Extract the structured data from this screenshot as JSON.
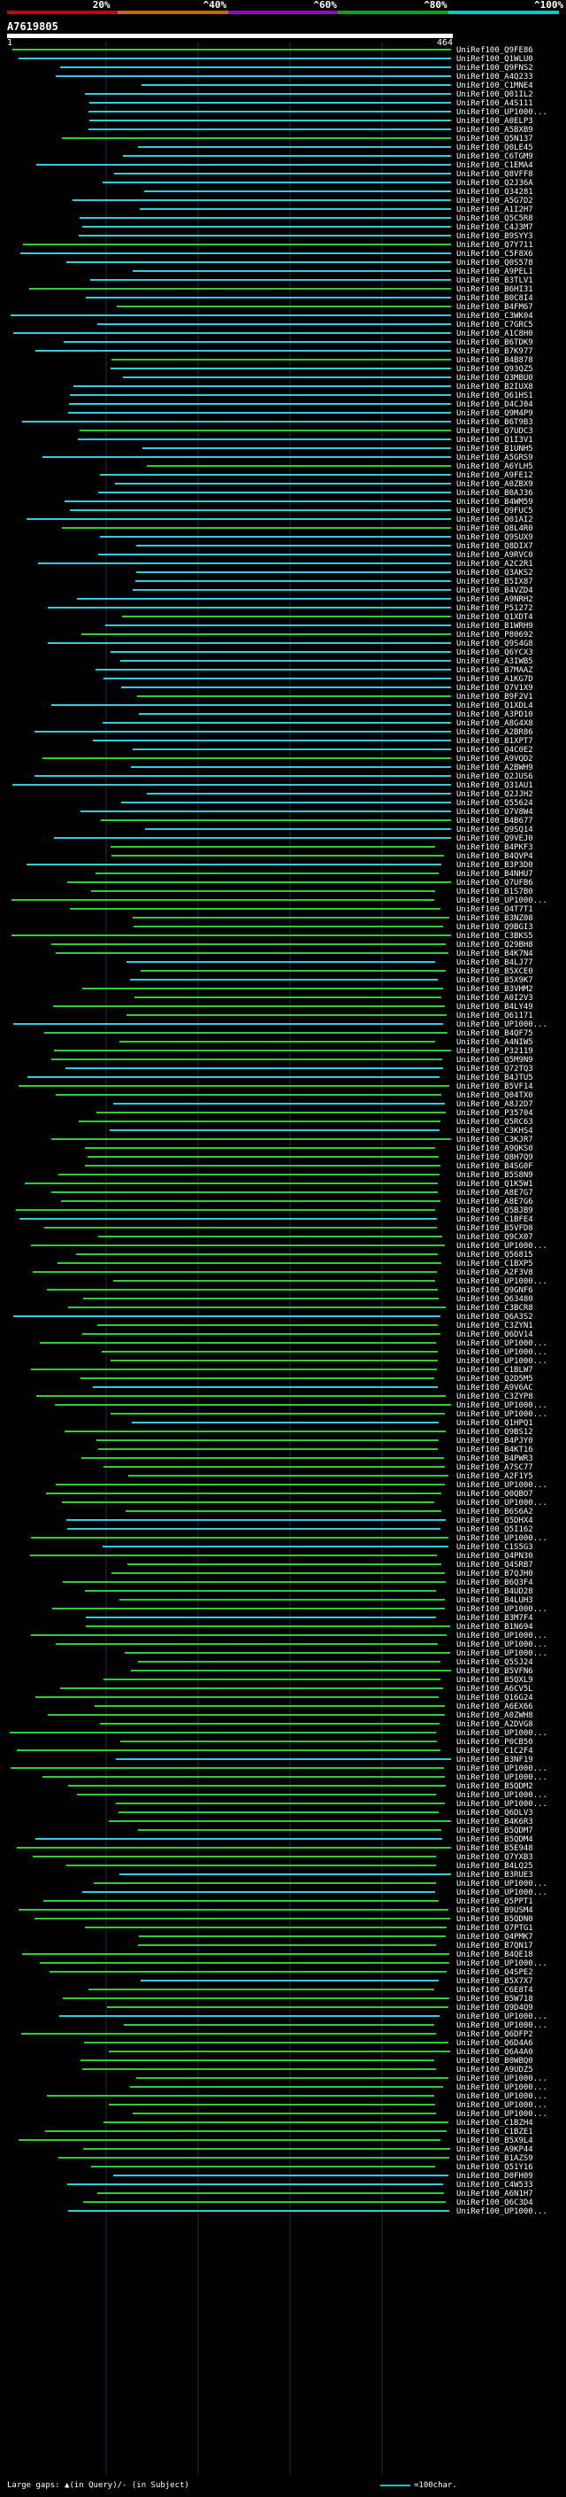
{
  "scale_labels": [
    "20%",
    "^40%",
    "^60%",
    "^80%",
    "^100%"
  ],
  "scale_colors": [
    "#cc0000",
    "#cc6600",
    "#9900cc",
    "#00aa00",
    "#00cccc"
  ],
  "query": {
    "id": "A7619805",
    "start": "1",
    "end": "464"
  },
  "hit_colors": {
    "high": "#33ccdd",
    "mid": "#33cc33"
  },
  "hits": [
    "UniRef100_Q9FE86",
    "UniRef100_Q1WLU0",
    "UniRef100_Q9FNS2",
    "UniRef100_A4Q233",
    "UniRef100_C1MNE4",
    "UniRef100_Q01IL2",
    "UniRef100_A4S111",
    "UniRef100_UP1000...",
    "UniRef100_A0ELP3",
    "UniRef100_A5BXB9",
    "UniRef100_Q5N137",
    "UniRef100_Q0LE45",
    "UniRef100_C6TGM9",
    "UniRef100_C1EMA4",
    "UniRef100_Q8VFF8",
    "UniRef100_Q2J36A",
    "UniRef100_Q34281",
    "UniRef100_A5G7D2",
    "UniRef100_A1I2H7",
    "UniRef100_Q5C5R8",
    "UniRef100_C4J3M7",
    "UniRef100_B9SYY3",
    "UniRef100_Q7Y711",
    "UniRef100_C5F8X6",
    "UniRef100_Q0S578",
    "UniRef100_A9PEL1",
    "UniRef100_B3TLV1",
    "UniRef100_B6HI31",
    "UniRef100_B0C8I4",
    "UniRef100_B4FM67",
    "UniRef100_C3WK04",
    "UniRef100_C7GRC5",
    "UniRef100_A1C8H0",
    "UniRef100_B6TDK9",
    "UniRef100_B7K977",
    "UniRef100_B4B878",
    "UniRef100_Q93QZ5",
    "UniRef100_Q3MBU0",
    "UniRef100_B2IUX8",
    "UniRef100_Q61HS1",
    "UniRef100_D4CJ04",
    "UniRef100_Q9M4P9",
    "UniRef100_B6T9B3",
    "UniRef100_Q7UDC3",
    "UniRef100_Q1I3V1",
    "UniRef100_B1UNH5",
    "UniRef100_A5GRS9",
    "UniRef100_A6YLH5",
    "UniRef100_A9FE12",
    "UniRef100_A0ZBX9",
    "UniRef100_B0AJ36",
    "UniRef100_B4WM59",
    "UniRef100_Q9FUC5",
    "UniRef100_Q01AI2",
    "UniRef100_Q8L4R0",
    "UniRef100_Q9SUX9",
    "UniRef100_Q8DIX7",
    "UniRef100_A9RVC0",
    "UniRef100_A2C2R1",
    "UniRef100_Q3AKS2",
    "UniRef100_B5IX87",
    "UniRef100_B4VZD4",
    "UniRef100_A9NRH2",
    "UniRef100_P51272",
    "UniRef100_Q1XDT4",
    "UniRef100_B1WRH9",
    "UniRef100_P80692",
    "UniRef100_Q9S4G8",
    "UniRef100_Q6YCX3",
    "UniRef100_A3IWB5",
    "UniRef100_B7MAAZ",
    "UniRef100_A1KG7D",
    "UniRef100_Q7V1X9",
    "UniRef100_B9F2V1",
    "UniRef100_Q1XDL4",
    "UniRef100_A3PD10",
    "UniRef100_A8G4X8",
    "UniRef100_A2BR86",
    "UniRef100_B1XPT7",
    "UniRef100_Q4C0E2",
    "UniRef100_A9VQD2",
    "UniRef100_A2BWH9",
    "UniRef100_Q2JUS6",
    "UniRef100_Q31AU1",
    "UniRef100_Q2JJH2",
    "UniRef100_Q55624",
    "UniRef100_Q7V8W4",
    "UniRef100_B4B677",
    "UniRef100_Q9SQ14",
    "UniRef100_Q9VEJ0",
    "UniRef100_B4PKF3",
    "UniRef100_B4QVP4",
    "UniRef100_B3P3D0",
    "UniRef100_B4NHU7",
    "UniRef100_Q7UFB6",
    "UniRef100_B1S7B0",
    "UniRef100_UP1000...",
    "UniRef100_Q4T7T1",
    "UniRef100_B3NZ08",
    "UniRef100_Q9BGI3",
    "UniRef100_C3BKS5",
    "UniRef100_Q29BH8",
    "UniRef100_B4K7N4",
    "UniRef100_B4LJ77",
    "UniRef100_B5XCE0",
    "UniRef100_B5X9K7",
    "UniRef100_B3VHM2",
    "UniRef100_A0I2V3",
    "UniRef100_B4LY49",
    "UniRef100_Q61171",
    "UniRef100_UP1000...",
    "UniRef100_B4QF75",
    "UniRef100_A4NIW5",
    "UniRef100_P32119",
    "UniRef100_Q5M9N9",
    "UniRef100_Q72TQ3",
    "UniRef100_B4JTU5",
    "UniRef100_B5VF14",
    "UniRef100_Q04TX0",
    "UniRef100_A8J2D7",
    "UniRef100_P35704",
    "UniRef100_Q5RC63",
    "UniRef100_C3KHS4",
    "UniRef100_C3KJR7",
    "UniRef100_A9QKS0",
    "UniRef100_Q8H7Q9",
    "UniRef100_B4SG0F",
    "UniRef100_B5S8N9",
    "UniRef100_Q1K5W1",
    "UniRef100_A8E7G7",
    "UniRef100_A8E7G6",
    "UniRef100_Q5BJB9",
    "UniRef100_C1BFE4",
    "UniRef100_B5VFD8",
    "UniRef100_Q9CX07",
    "UniRef100_UP1000...",
    "UniRef100_Q56815",
    "UniRef100_C1BXP5",
    "UniRef100_A2F3V8",
    "UniRef100_UP1000...",
    "UniRef100_Q9GNF6",
    "UniRef100_Q63480",
    "UniRef100_C3BCR8",
    "UniRef100_Q6A3S2",
    "UniRef100_C3ZYN1",
    "UniRef100_Q6DV14",
    "UniRef100_UP1000...",
    "UniRef100_UP1000...",
    "UniRef100_UP1000...",
    "UniRef100_C1BLW7",
    "UniRef100_Q2D5M5",
    "UniRef100_A9V6AC",
    "UniRef100_C3ZYP8",
    "UniRef100_UP1000...",
    "UniRef100_UP1000...",
    "UniRef100_Q1HPQ1",
    "UniRef100_Q9BS12",
    "UniRef100_B4PJY0",
    "UniRef100_B4KT16",
    "UniRef100_B4PWR3",
    "UniRef100_A7SC77",
    "UniRef100_A2F1Y5",
    "UniRef100_UP1000...",
    "UniRef100_Q0QBO7",
    "UniRef100_UP1000...",
    "UniRef100_B6S6A2",
    "UniRef100_Q5DHX4",
    "UniRef100_Q5I162",
    "UniRef100_UP1000...",
    "UniRef100_C1S5G3",
    "UniRef100_Q4PN30",
    "UniRef100_Q4SRB7",
    "UniRef100_B7QJH0",
    "UniRef100_B6Q3F4",
    "UniRef100_B4UD28",
    "UniRef100_B4LUH3",
    "UniRef100_UP1000...",
    "UniRef100_B3M7F4",
    "UniRef100_B1N694",
    "UniRef100_UP1000...",
    "UniRef100_UP1000...",
    "UniRef100_UP1000...",
    "UniRef100_Q5SJ24",
    "UniRef100_B5VFN6",
    "UniRef100_B5QXL9",
    "UniRef100_A6CV5L",
    "UniRef100_Q16G24",
    "UniRef100_A6EX66",
    "UniRef100_A0ZWH8",
    "UniRef100_A2DVG8",
    "UniRef100_UP1000...",
    "UniRef100_P0CB50",
    "UniRef100_C1C2F4",
    "UniRef100_B3NF19",
    "UniRef100_UP1000...",
    "UniRef100_UP1000...",
    "UniRef100_B5QDM2",
    "UniRef100_UP1000...",
    "UniRef100_UP1000...",
    "UniRef100_Q6DLV3",
    "UniRef100_B4K6R3",
    "UniRef100_B5QDM7",
    "UniRef100_B5QDM4",
    "UniRef100_B5E948",
    "UniRef100_Q7YXB3",
    "UniRef100_B4LQ25",
    "UniRef100_B3RUE3",
    "UniRef100_UP1000...",
    "UniRef100_UP1000...",
    "UniRef100_Q5PPT1",
    "UniRef100_B9USM4",
    "UniRef100_B5QDN0",
    "UniRef100_Q7PTG1",
    "UniRef100_Q4PMK7",
    "UniRef100_B7QN17",
    "UniRef100_B4QE18",
    "UniRef100_UP1000...",
    "UniRef100_Q4SPE2",
    "UniRef100_B5X7X7",
    "UniRef100_C6E8T4",
    "UniRef100_B5W718",
    "UniRef100_Q9D4Q9",
    "UniRef100_UP1000...",
    "UniRef100_UP1000...",
    "UniRef100_Q6DFP2",
    "UniRef100_Q6D4A6",
    "UniRef100_Q6A4A0",
    "UniRef100_B0WBQ0",
    "UniRef100_A9UDZ5",
    "UniRef100_UP1000...",
    "UniRef100_UP1000...",
    "UniRef100_UP1000...",
    "UniRef100_UP1000...",
    "UniRef100_UP1000...",
    "UniRef100_C1BZH4",
    "UniRef100_C1BZE1",
    "UniRef100_B5X9L4",
    "UniRef100_A9KP44",
    "UniRef100_B1AZS9",
    "UniRef100_Q51Y16",
    "UniRef100_D0FH09",
    "UniRef100_C4W533",
    "UniRef100_A6N1H7",
    "UniRef100_Q6C3D4",
    "UniRef100_UP1000..."
  ],
  "footer": {
    "legend": "Large gaps: ▲(in Query)/- (in Subject)",
    "scale": "=100char."
  }
}
